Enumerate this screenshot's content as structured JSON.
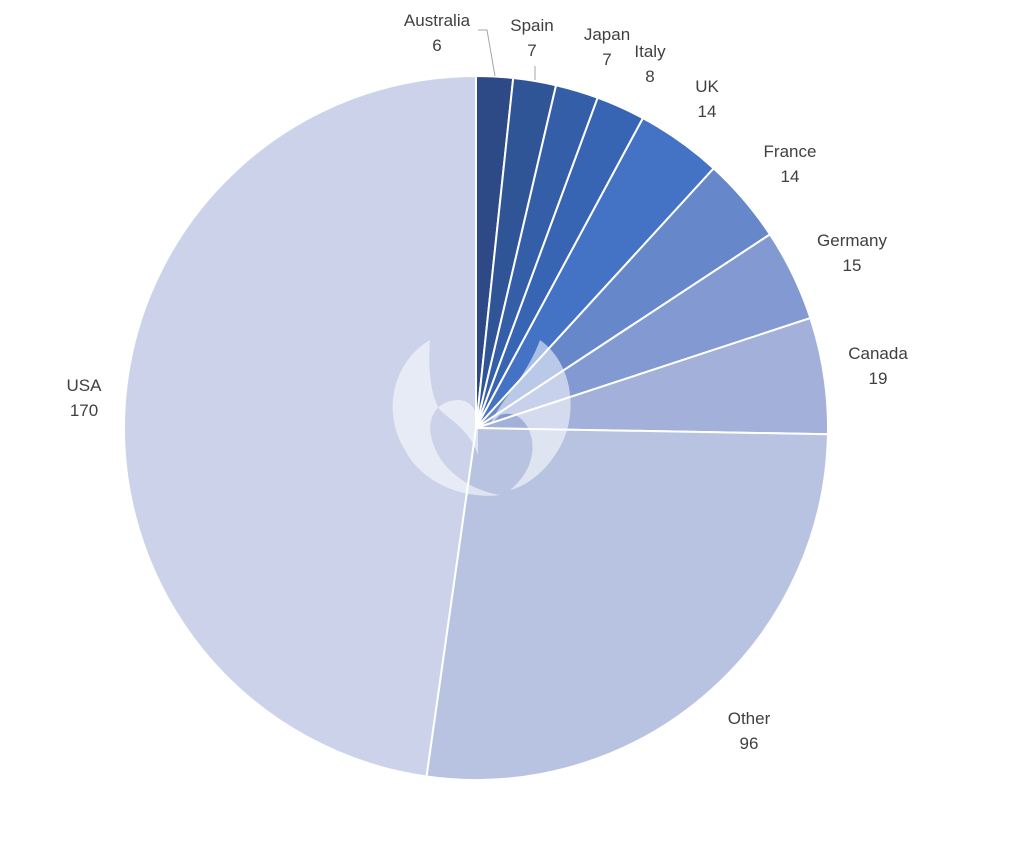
{
  "chart_data": {
    "type": "pie",
    "title": "",
    "start_angle_deg": 0,
    "direction": "clockwise",
    "slices": [
      {
        "label": "Australia",
        "value": 6,
        "value_label": "6",
        "color": "#2d4a87"
      },
      {
        "label": "Spain",
        "value": 7,
        "value_label": "7",
        "color": "#2f5597"
      },
      {
        "label": "Japan",
        "value": 7,
        "value_label": "7",
        "color": "#345ea8"
      },
      {
        "label": "Italy",
        "value": 8,
        "value_label": "8",
        "color": "#3864b4"
      },
      {
        "label": "UK",
        "value": 14,
        "value_label": "14",
        "color": "#4472c4"
      },
      {
        "label": "France",
        "value": 14,
        "value_label": "14",
        "color": "#6787cb"
      },
      {
        "label": "Germany",
        "value": 15,
        "value_label": "15",
        "color": "#8399d2"
      },
      {
        "label": "Canada",
        "value": 19,
        "value_label": "19",
        "color": "#a2b0da"
      },
      {
        "label": "Other",
        "value": 96,
        "value_label": "96",
        "color": "#b8c3e1"
      },
      {
        "label": "USA",
        "value": 170,
        "value_label": "170",
        "color": "#cbd2e9"
      }
    ]
  }
}
